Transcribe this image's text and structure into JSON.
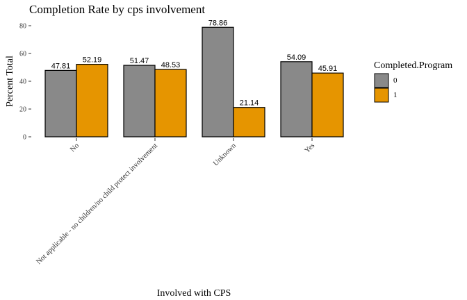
{
  "chart_data": {
    "type": "bar",
    "title": "Completion Rate by cps involvement",
    "xlabel": "Involved with CPS",
    "ylabel": "Percent Total",
    "ylim": [
      0,
      80
    ],
    "yticks": [
      0,
      20,
      40,
      60,
      80
    ],
    "categories": [
      "No",
      "Not applicable - no children/no child protect involvement",
      "Unknown",
      "Yes"
    ],
    "series": [
      {
        "name": "0",
        "values": [
          47.81,
          51.47,
          78.86,
          54.09
        ]
      },
      {
        "name": "1",
        "values": [
          52.19,
          48.53,
          21.14,
          45.91
        ]
      }
    ],
    "legend": {
      "title": "Completed.Program",
      "position": "right"
    },
    "grid": false
  },
  "colors": {
    "series_0": "#898989",
    "series_1": "#E69500",
    "outline": "#000000",
    "text": "#000000",
    "tick": "#333333"
  }
}
